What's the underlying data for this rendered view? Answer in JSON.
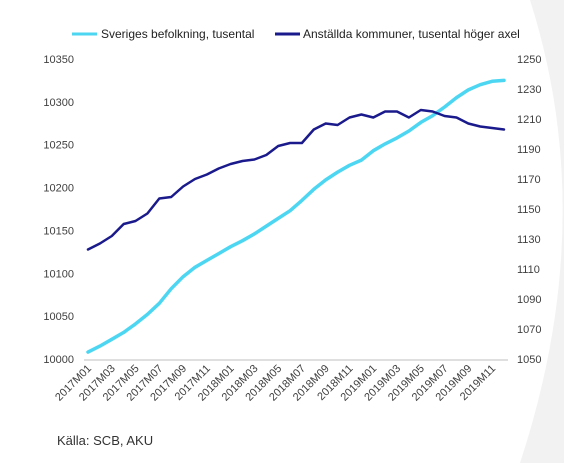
{
  "source": "Källa: SCB, AKU",
  "chart_data": {
    "type": "line",
    "categories": [
      "2017M01",
      "2017M02",
      "2017M03",
      "2017M04",
      "2017M05",
      "2017M06",
      "2017M07",
      "2017M08",
      "2017M09",
      "2017M10",
      "2017M11",
      "2017M12",
      "2018M01",
      "2018M02",
      "2018M03",
      "2018M04",
      "2018M05",
      "2018M06",
      "2018M07",
      "2018M08",
      "2018M09",
      "2018M10",
      "2018M11",
      "2018M12",
      "2019M01",
      "2019M02",
      "2019M03",
      "2019M04",
      "2019M05",
      "2019M06",
      "2019M07",
      "2019M08",
      "2019M09",
      "2019M10",
      "2019M11",
      "2019M12"
    ],
    "x_tick_labels": [
      "2017M01",
      "2017M03",
      "2017M05",
      "2017M07",
      "2017M09",
      "2017M11",
      "2018M01",
      "2018M03",
      "2018M05",
      "2018M07",
      "2018M09",
      "2018M11",
      "2019M01",
      "2019M03",
      "2019M05",
      "2019M07",
      "2019M09",
      "2019M11"
    ],
    "y_left": {
      "min": 10000,
      "max": 10350,
      "ticks": [
        10000,
        10050,
        10100,
        10150,
        10200,
        10250,
        10300,
        10350
      ]
    },
    "y_right": {
      "min": 1050,
      "max": 1250,
      "ticks": [
        1050,
        1070,
        1090,
        1110,
        1130,
        1150,
        1170,
        1190,
        1210,
        1230,
        1250
      ]
    },
    "legend_position": "top",
    "series": [
      {
        "name": "Sveriges befolkning, tusental",
        "axis": "left",
        "color": "#4dd6f2",
        "values": [
          10008,
          10015,
          10023,
          10031,
          10041,
          10052,
          10065,
          10082,
          10096,
          10107,
          10115,
          10123,
          10131,
          10138,
          10146,
          10155,
          10164,
          10173,
          10185,
          10198,
          10209,
          10218,
          10226,
          10232,
          10243,
          10251,
          10258,
          10266,
          10276,
          10284,
          10294,
          10305,
          10314,
          10320,
          10324,
          10325
        ]
      },
      {
        "name": "Anställda kommuner, tusental höger axel",
        "axis": "right",
        "color": "#1a1a8c",
        "values": [
          1123,
          1127,
          1132,
          1140,
          1142,
          1147,
          1157,
          1158,
          1165,
          1170,
          1173,
          1177,
          1180,
          1182,
          1183,
          1186,
          1192,
          1194,
          1194,
          1203,
          1207,
          1206,
          1211,
          1213,
          1211,
          1215,
          1215,
          1211,
          1216,
          1215,
          1212,
          1211,
          1207,
          1205,
          1204,
          1203
        ]
      }
    ]
  }
}
